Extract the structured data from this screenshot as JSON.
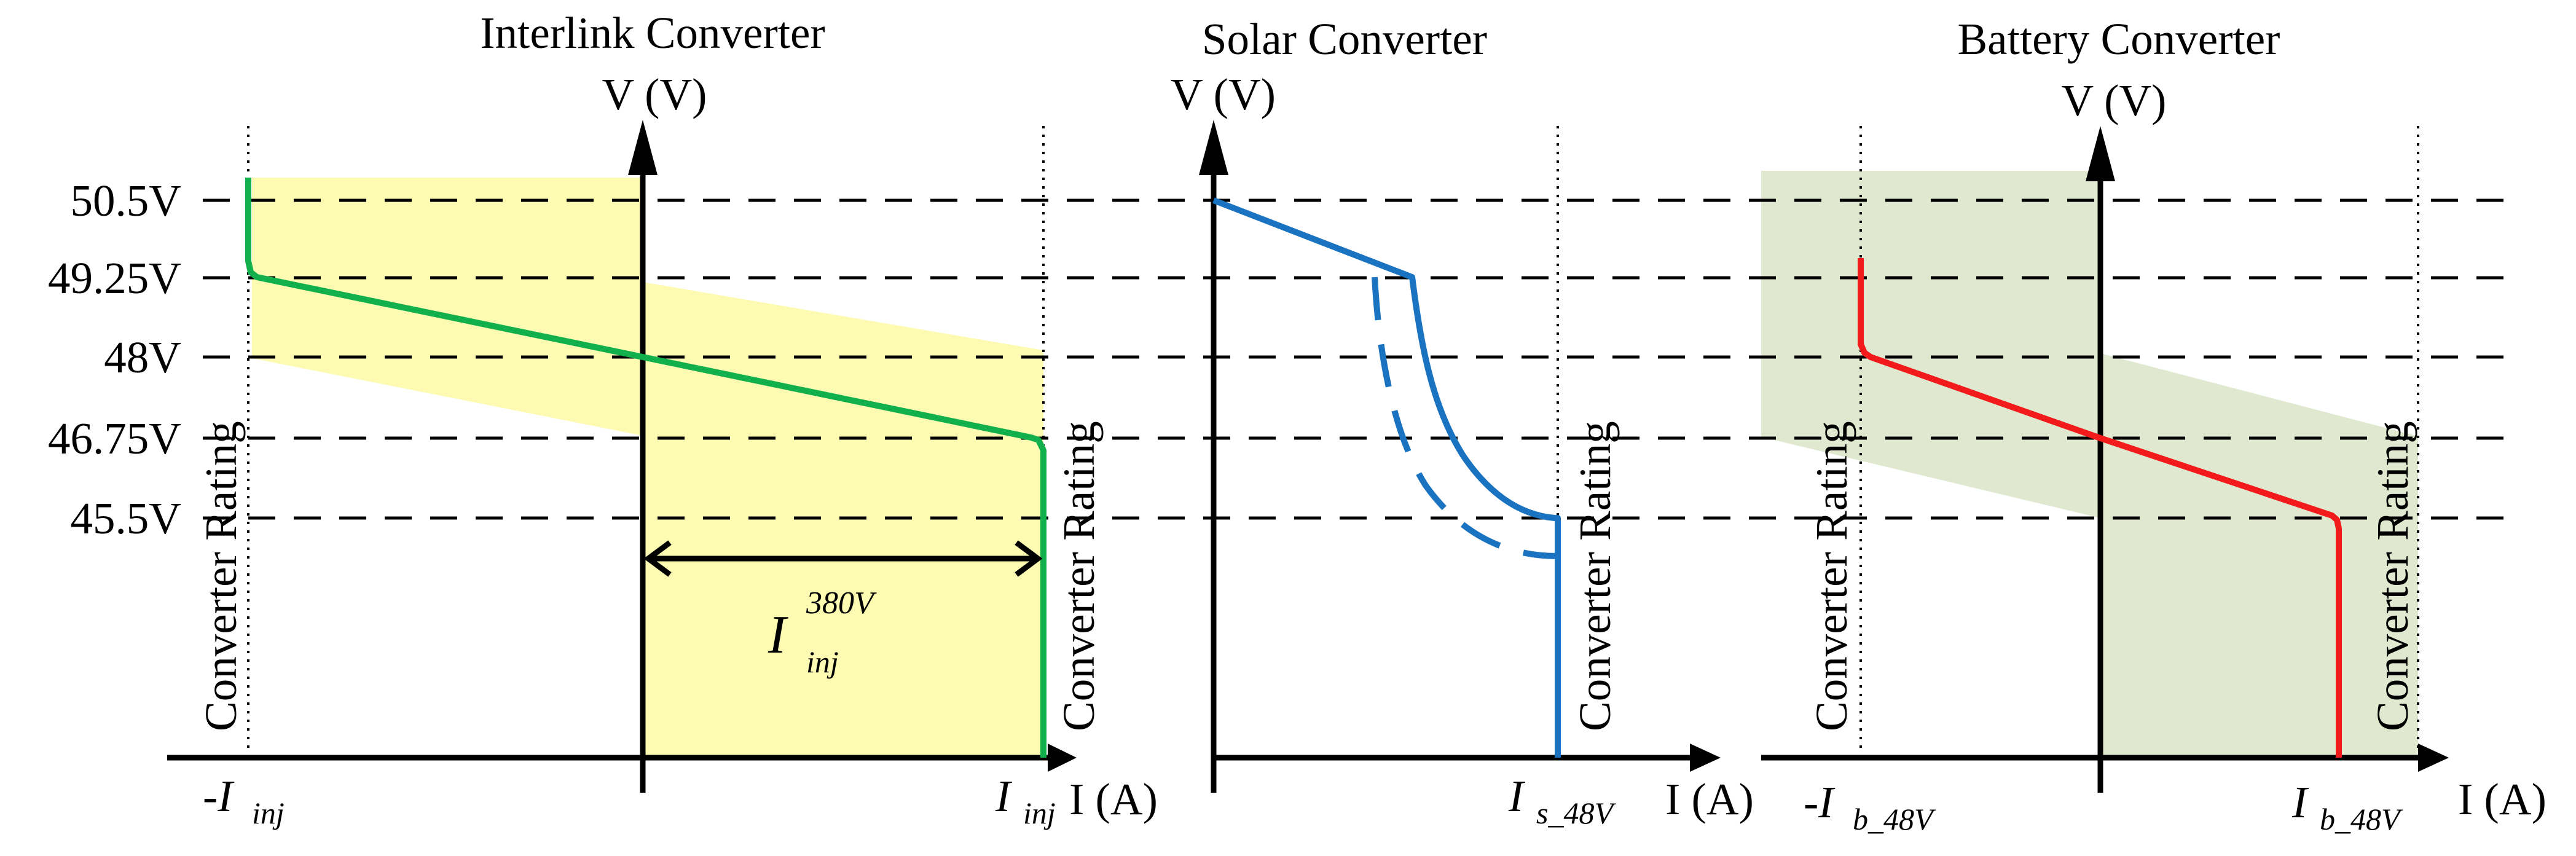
{
  "voltage_levels": [
    "50.5V",
    "49.25V",
    "48V",
    "46.75V",
    "45.5V"
  ],
  "colors": {
    "interlink_curve": "#12b04c",
    "interlink_region": "#fdfbb2",
    "solar_curve": "#1a73c0",
    "battery_curve": "#f21a1a",
    "battery_region": "#e0e8cf"
  },
  "panels": {
    "interlink": {
      "title": "Interlink Converter",
      "v_axis_label": "V (V)",
      "i_axis_label": "I (A)",
      "rating_left": "Converter Rating",
      "rating_right": "Converter Rating",
      "neg_current": {
        "prefix": "-I",
        "sub": "inj"
      },
      "pos_current": {
        "main": "I",
        "sub": "inj"
      },
      "arrow_label": {
        "main": "I",
        "sup": "380V",
        "sub": "inj"
      }
    },
    "solar": {
      "title": "Solar Converter",
      "v_axis_label": "V (V)",
      "i_axis_label": "I (A)",
      "rating_right": "Converter Rating",
      "pos_current": {
        "main": "I",
        "sub": "s_48V"
      }
    },
    "battery": {
      "title": "Battery Converter",
      "v_axis_label": "V (V)",
      "i_axis_label": "I (A)",
      "rating_left": "Converter Rating",
      "rating_right": "Converter Rating",
      "neg_current": {
        "prefix": "-I",
        "sub": "b_48V"
      },
      "pos_current": {
        "main": "I",
        "sub": "b_48V"
      }
    }
  }
}
